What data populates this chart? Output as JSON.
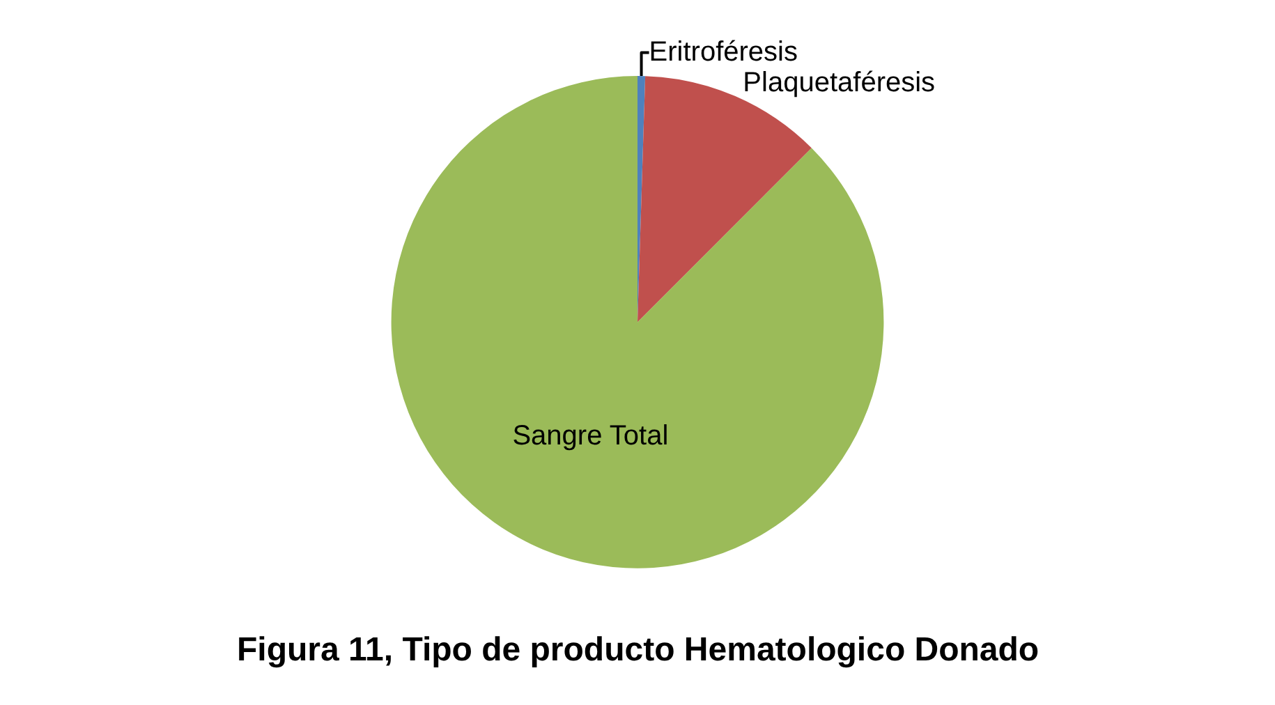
{
  "chart_data": {
    "type": "pie",
    "categories": [
      "Eritroféresis",
      "Plaquetaféresis",
      "Sangre Total"
    ],
    "values": [
      0.5,
      12,
      87.5
    ],
    "colors": [
      "#4f81bd",
      "#c0504d",
      "#9bbb59"
    ],
    "annotations": [
      "Figura 11, Tipo de producto Hematologico Donado"
    ]
  }
}
